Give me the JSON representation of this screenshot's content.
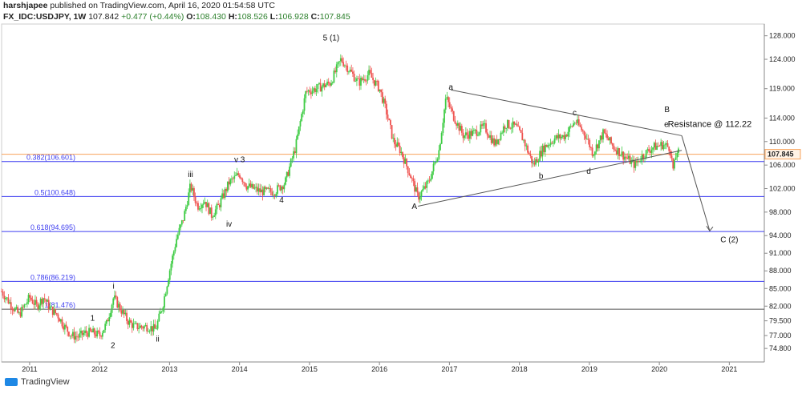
{
  "header": {
    "author": "harshjapee",
    "published": "published on TradingView.com, April 16, 2020 01:54:58 UTC",
    "symbol": "FX_IDC:USDJPY, 1W",
    "last": "107.842",
    "change": "+0.477 (+0.44%)",
    "o_label": "O:",
    "o": "108.430",
    "h_label": "H:",
    "h": "108.526",
    "l_label": "L:",
    "l": "106.928",
    "c_label": "C:",
    "c": "107.845"
  },
  "footer": {
    "brand": "TradingView"
  },
  "colors": {
    "up": "#26a69a",
    "upBright": "#3fcc45",
    "down": "#ef5350",
    "fib": "#3d3df0",
    "price": "#f7a35c"
  },
  "chart_data": {
    "type": "candlestick",
    "title": "FX_IDC:USDJPY, 1W",
    "y_ticks": [
      128.0,
      124.0,
      119.0,
      114.0,
      110.0,
      106.0,
      102.0,
      98.0,
      94.0,
      91.0,
      88.0,
      85.0,
      82.0,
      79.5,
      77.0,
      74.8
    ],
    "y_tick_labels": [
      "128.000",
      "124.000",
      "119.000",
      "114.000",
      "110.000",
      "106.000",
      "102.000",
      "98.000",
      "94.000",
      "91.000",
      "88.000",
      "85.000",
      "82.000",
      "79.500",
      "77.000",
      "74.800"
    ],
    "x_ticks": [
      2011,
      2012,
      2013,
      2014,
      2015,
      2016,
      2017,
      2018,
      2019,
      2020,
      2021
    ],
    "ylim": [
      72.5,
      130.0
    ],
    "xlim": [
      2010.6,
      2021.5
    ],
    "last_price": 107.845,
    "last_price_label": "107.845",
    "price_path": [
      [
        2010.6,
        84.5
      ],
      [
        2010.75,
        82.0
      ],
      [
        2010.85,
        80.5
      ],
      [
        2011.0,
        83.5
      ],
      [
        2011.1,
        82.0
      ],
      [
        2011.2,
        83.5
      ],
      [
        2011.3,
        81.5
      ],
      [
        2011.4,
        80.5
      ],
      [
        2011.5,
        78.5
      ],
      [
        2011.6,
        77.0
      ],
      [
        2011.7,
        76.8
      ],
      [
        2011.8,
        77.5
      ],
      [
        2011.9,
        77.5
      ],
      [
        2012.0,
        77.0
      ],
      [
        2012.1,
        79.0
      ],
      [
        2012.2,
        83.5
      ],
      [
        2012.3,
        81.5
      ],
      [
        2012.4,
        79.5
      ],
      [
        2012.5,
        78.5
      ],
      [
        2012.6,
        78.5
      ],
      [
        2012.7,
        78.5
      ],
      [
        2012.8,
        78.0
      ],
      [
        2012.9,
        82.0
      ],
      [
        2013.0,
        88.0
      ],
      [
        2013.1,
        93.5
      ],
      [
        2013.2,
        97.0
      ],
      [
        2013.3,
        102.5
      ],
      [
        2013.4,
        99.0
      ],
      [
        2013.5,
        100.0
      ],
      [
        2013.6,
        97.5
      ],
      [
        2013.7,
        99.0
      ],
      [
        2013.85,
        103.0
      ],
      [
        2014.0,
        104.5
      ],
      [
        2014.1,
        102.5
      ],
      [
        2014.3,
        101.5
      ],
      [
        2014.5,
        101.5
      ],
      [
        2014.65,
        103.0
      ],
      [
        2014.8,
        109.0
      ],
      [
        2014.95,
        118.5
      ],
      [
        2015.1,
        119.0
      ],
      [
        2015.3,
        120.0
      ],
      [
        2015.45,
        124.0
      ],
      [
        2015.55,
        122.5
      ],
      [
        2015.7,
        120.0
      ],
      [
        2015.85,
        121.5
      ],
      [
        2016.0,
        119.0
      ],
      [
        2016.1,
        115.0
      ],
      [
        2016.2,
        110.0
      ],
      [
        2016.3,
        108.5
      ],
      [
        2016.45,
        104.0
      ],
      [
        2016.55,
        100.5
      ],
      [
        2016.7,
        103.0
      ],
      [
        2016.85,
        108.5
      ],
      [
        2016.95,
        117.5
      ],
      [
        2017.05,
        114.5
      ],
      [
        2017.2,
        111.0
      ],
      [
        2017.35,
        111.5
      ],
      [
        2017.5,
        112.5
      ],
      [
        2017.65,
        109.5
      ],
      [
        2017.8,
        113.0
      ],
      [
        2017.95,
        112.5
      ],
      [
        2018.05,
        110.5
      ],
      [
        2018.2,
        106.0
      ],
      [
        2018.35,
        109.0
      ],
      [
        2018.5,
        110.5
      ],
      [
        2018.65,
        111.0
      ],
      [
        2018.8,
        113.5
      ],
      [
        2018.95,
        111.0
      ],
      [
        2019.05,
        108.0
      ],
      [
        2019.2,
        111.5
      ],
      [
        2019.35,
        109.0
      ],
      [
        2019.5,
        107.5
      ],
      [
        2019.65,
        106.0
      ],
      [
        2019.75,
        107.5
      ],
      [
        2019.9,
        109.0
      ],
      [
        2020.05,
        109.5
      ],
      [
        2020.15,
        109.0
      ],
      [
        2020.2,
        105.0
      ],
      [
        2020.25,
        108.5
      ],
      [
        2020.29,
        107.8
      ]
    ],
    "fib_levels": [
      {
        "label": "0.382(106.601)",
        "value": 106.601
      },
      {
        "label": "0.5(100.648)",
        "value": 100.648
      },
      {
        "label": "0.618(94.695)",
        "value": 94.695
      },
      {
        "label": "0.786(86.219)",
        "value": 86.219
      },
      {
        "label": "1(81.476)",
        "value": 81.476
      }
    ],
    "annotations": [
      {
        "text": "1",
        "x": 2011.9,
        "y": 79.5
      },
      {
        "text": "2",
        "x": 2012.19,
        "y": 74.9
      },
      {
        "text": "i",
        "x": 2012.2,
        "y": 85.0
      },
      {
        "text": "ii",
        "x": 2012.83,
        "y": 76.0
      },
      {
        "text": "iii",
        "x": 2013.3,
        "y": 104.0
      },
      {
        "text": "iv",
        "x": 2013.85,
        "y": 95.5
      },
      {
        "text": "v 3",
        "x": 2014.0,
        "y": 106.5
      },
      {
        "text": "4",
        "x": 2014.6,
        "y": 99.6
      },
      {
        "text": "5 (1)",
        "x": 2015.31,
        "y": 127.2
      },
      {
        "text": "A",
        "x": 2016.5,
        "y": 98.5
      },
      {
        "text": "a",
        "x": 2017.02,
        "y": 118.8
      },
      {
        "text": "b",
        "x": 2018.31,
        "y": 103.7
      },
      {
        "text": "c",
        "x": 2018.79,
        "y": 114.5
      },
      {
        "text": "d",
        "x": 2018.99,
        "y": 104.5
      },
      {
        "text": "B",
        "x": 2020.11,
        "y": 115.0
      },
      {
        "text": "e",
        "x": 2020.1,
        "y": 112.5
      },
      {
        "text": "Resistance @ 112.22",
        "x": 2020.72,
        "y": 112.5
      },
      {
        "text": "C (2)",
        "x": 2021.0,
        "y": 92.9
      }
    ],
    "trendlines": [
      {
        "from": [
          2017.02,
          118.8
        ],
        "to": [
          2020.32,
          111.0
        ]
      },
      {
        "from": [
          2016.55,
          99.0
        ],
        "to": [
          2020.32,
          108.5
        ]
      },
      {
        "from": [
          2020.32,
          111.0
        ],
        "to": [
          2020.72,
          94.8
        ]
      }
    ]
  }
}
